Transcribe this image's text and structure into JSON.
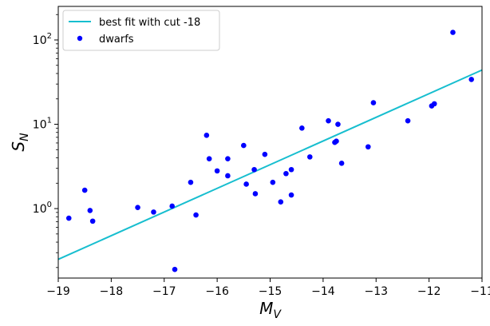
{
  "chart_data": {
    "type": "scatter",
    "title": "",
    "xlabel_main": "M",
    "xlabel_sub": "V",
    "ylabel_main": "S",
    "ylabel_sub": "N",
    "xlim": [
      -19,
      -11
    ],
    "ylim": [
      0.15,
      250
    ],
    "y_scale": "log",
    "grid": false,
    "legend_position": "top-left",
    "x_ticks": [
      -19,
      -18,
      -17,
      -16,
      -15,
      -14,
      -13,
      -12,
      -11
    ],
    "x_tick_labels": [
      "−19",
      "−18",
      "−17",
      "−16",
      "−15",
      "−14",
      "−13",
      "−12",
      "−11"
    ],
    "y_ticks": [
      1,
      10,
      100
    ],
    "y_tick_labels": [
      {
        "base": "10",
        "exp": "0"
      },
      {
        "base": "10",
        "exp": "1"
      },
      {
        "base": "10",
        "exp": "2"
      }
    ],
    "series": [
      {
        "name": "best fit with cut -18",
        "kind": "line",
        "color": "#17becf",
        "x": [
          -19,
          -11
        ],
        "y": [
          0.25,
          44
        ]
      },
      {
        "name": "dwarfs",
        "kind": "scatter",
        "color": "#0000ff",
        "x": [
          -18.8,
          -18.5,
          -18.4,
          -18.35,
          -17.5,
          -17.2,
          -16.85,
          -16.8,
          -16.5,
          -16.4,
          -16.2,
          -16.15,
          -16.0,
          -15.8,
          -15.8,
          -15.5,
          -15.45,
          -15.3,
          -15.28,
          -15.1,
          -14.95,
          -14.8,
          -14.7,
          -14.6,
          -14.6,
          -14.4,
          -14.25,
          -13.9,
          -13.78,
          -13.75,
          -13.72,
          -13.65,
          -13.15,
          -13.05,
          -12.4,
          -11.95,
          -11.9,
          -11.55,
          -11.2
        ],
        "y": [
          0.77,
          1.65,
          0.95,
          0.71,
          1.03,
          0.91,
          1.07,
          0.19,
          2.05,
          0.84,
          7.4,
          3.9,
          2.8,
          3.9,
          2.45,
          5.6,
          1.95,
          2.9,
          1.5,
          4.4,
          2.05,
          1.2,
          2.6,
          2.9,
          1.45,
          9.0,
          4.1,
          11.0,
          6.1,
          6.3,
          10.0,
          3.45,
          5.4,
          18.0,
          11.0,
          16.5,
          17.5,
          123,
          34
        ]
      }
    ]
  }
}
